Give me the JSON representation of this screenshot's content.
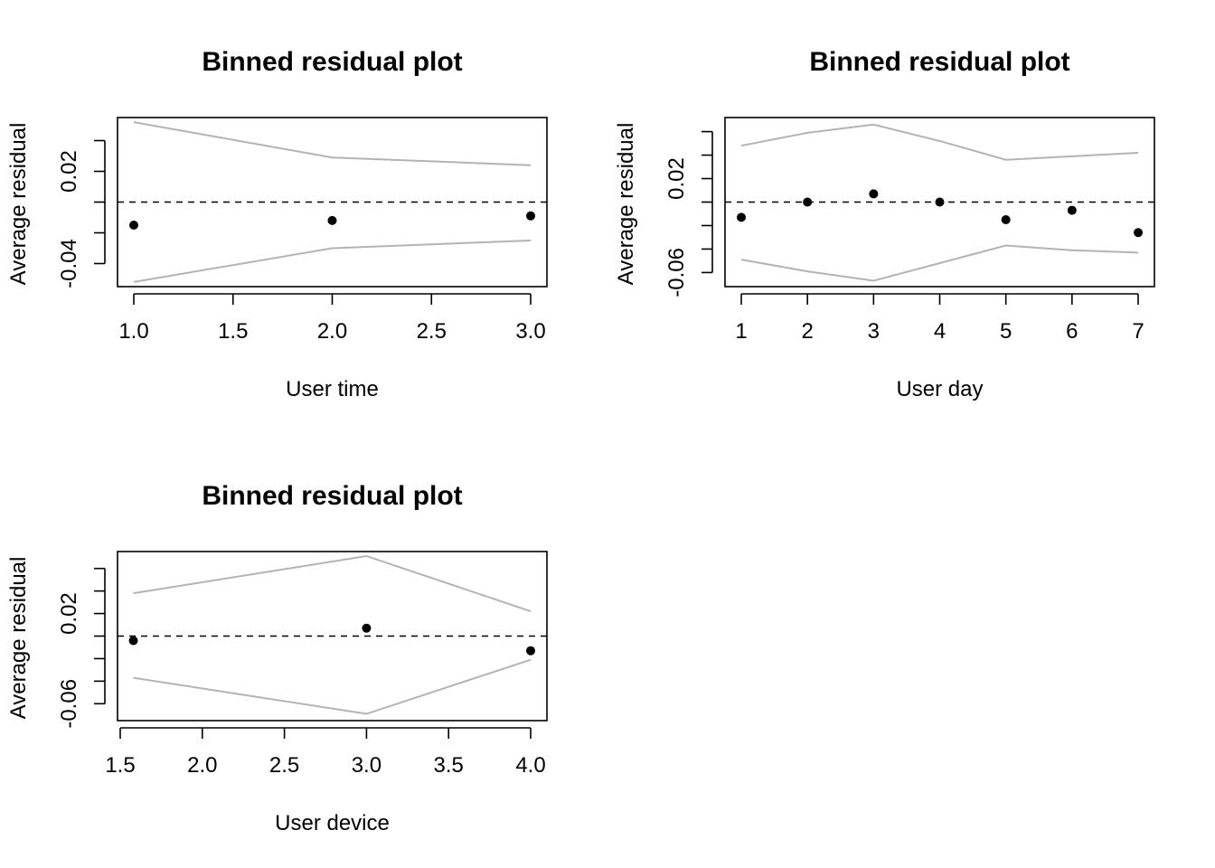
{
  "chart_data": [
    {
      "type": "scatter",
      "title": "Binned residual plot",
      "xlabel": "User time",
      "ylabel": "Average residual",
      "xlim": [
        1.0,
        3.0
      ],
      "ylim": [
        -0.055,
        0.055
      ],
      "x_ticks": [
        1.0,
        1.5,
        2.0,
        2.5,
        3.0
      ],
      "x_tick_labels": [
        "1.0",
        "1.5",
        "2.0",
        "2.5",
        "3.0"
      ],
      "y_ticks": [
        -0.04,
        -0.02,
        0.0,
        0.02,
        0.04
      ],
      "y_tick_labels": [
        "-0.04",
        "",
        "",
        "0.02",
        ""
      ],
      "reference_line": 0,
      "points": {
        "x": [
          1.0,
          2.0,
          3.0
        ],
        "y": [
          -0.015,
          -0.012,
          -0.009
        ]
      },
      "bounds": {
        "x": [
          1.0,
          2.0,
          3.0
        ],
        "upper": [
          0.052,
          0.029,
          0.024
        ],
        "lower": [
          -0.052,
          -0.03,
          -0.025
        ]
      }
    },
    {
      "type": "scatter",
      "title": "Binned residual plot",
      "xlabel": "User day",
      "ylabel": "Average residual",
      "xlim": [
        1,
        7
      ],
      "ylim": [
        -0.072,
        0.072
      ],
      "x_ticks": [
        1,
        2,
        3,
        4,
        5,
        6,
        7
      ],
      "x_tick_labels": [
        "1",
        "2",
        "3",
        "4",
        "5",
        "6",
        "7"
      ],
      "y_ticks": [
        -0.06,
        -0.04,
        -0.02,
        0.0,
        0.02,
        0.04,
        0.06
      ],
      "y_tick_labels": [
        "-0.06",
        "",
        "",
        "",
        "0.02",
        "",
        ""
      ],
      "reference_line": 0,
      "points": {
        "x": [
          1,
          2,
          3,
          4,
          5,
          6,
          7
        ],
        "y": [
          -0.013,
          0.0,
          0.007,
          0.0,
          -0.015,
          -0.007,
          -0.026
        ]
      },
      "bounds": {
        "x": [
          1,
          2,
          3,
          4,
          5,
          6,
          7
        ],
        "upper": [
          0.048,
          0.059,
          0.066,
          0.052,
          0.036,
          0.039,
          0.042
        ],
        "lower": [
          -0.049,
          -0.059,
          -0.067,
          -0.052,
          -0.037,
          -0.041,
          -0.043
        ]
      }
    },
    {
      "type": "scatter",
      "title": "Binned residual plot",
      "xlabel": "User device",
      "ylabel": "Average residual",
      "xlim": [
        1.5,
        4.0
      ],
      "ylim": [
        -0.075,
        0.075
      ],
      "x_ticks": [
        1.5,
        2.0,
        2.5,
        3.0,
        3.5,
        4.0
      ],
      "x_tick_labels": [
        "1.5",
        "2.0",
        "2.5",
        "3.0",
        "3.5",
        "4.0"
      ],
      "y_ticks": [
        -0.06,
        -0.04,
        -0.02,
        0.0,
        0.02,
        0.04,
        0.06
      ],
      "y_tick_labels": [
        "-0.06",
        "",
        "",
        "",
        "0.02",
        "",
        ""
      ],
      "reference_line": 0,
      "points": {
        "x": [
          1.58,
          3.0,
          4.0
        ],
        "y": [
          -0.004,
          0.007,
          -0.013
        ]
      },
      "bounds": {
        "x": [
          1.58,
          3.0,
          4.0
        ],
        "upper": [
          0.038,
          0.071,
          0.022
        ],
        "lower": [
          -0.037,
          -0.069,
          -0.021
        ]
      }
    }
  ]
}
